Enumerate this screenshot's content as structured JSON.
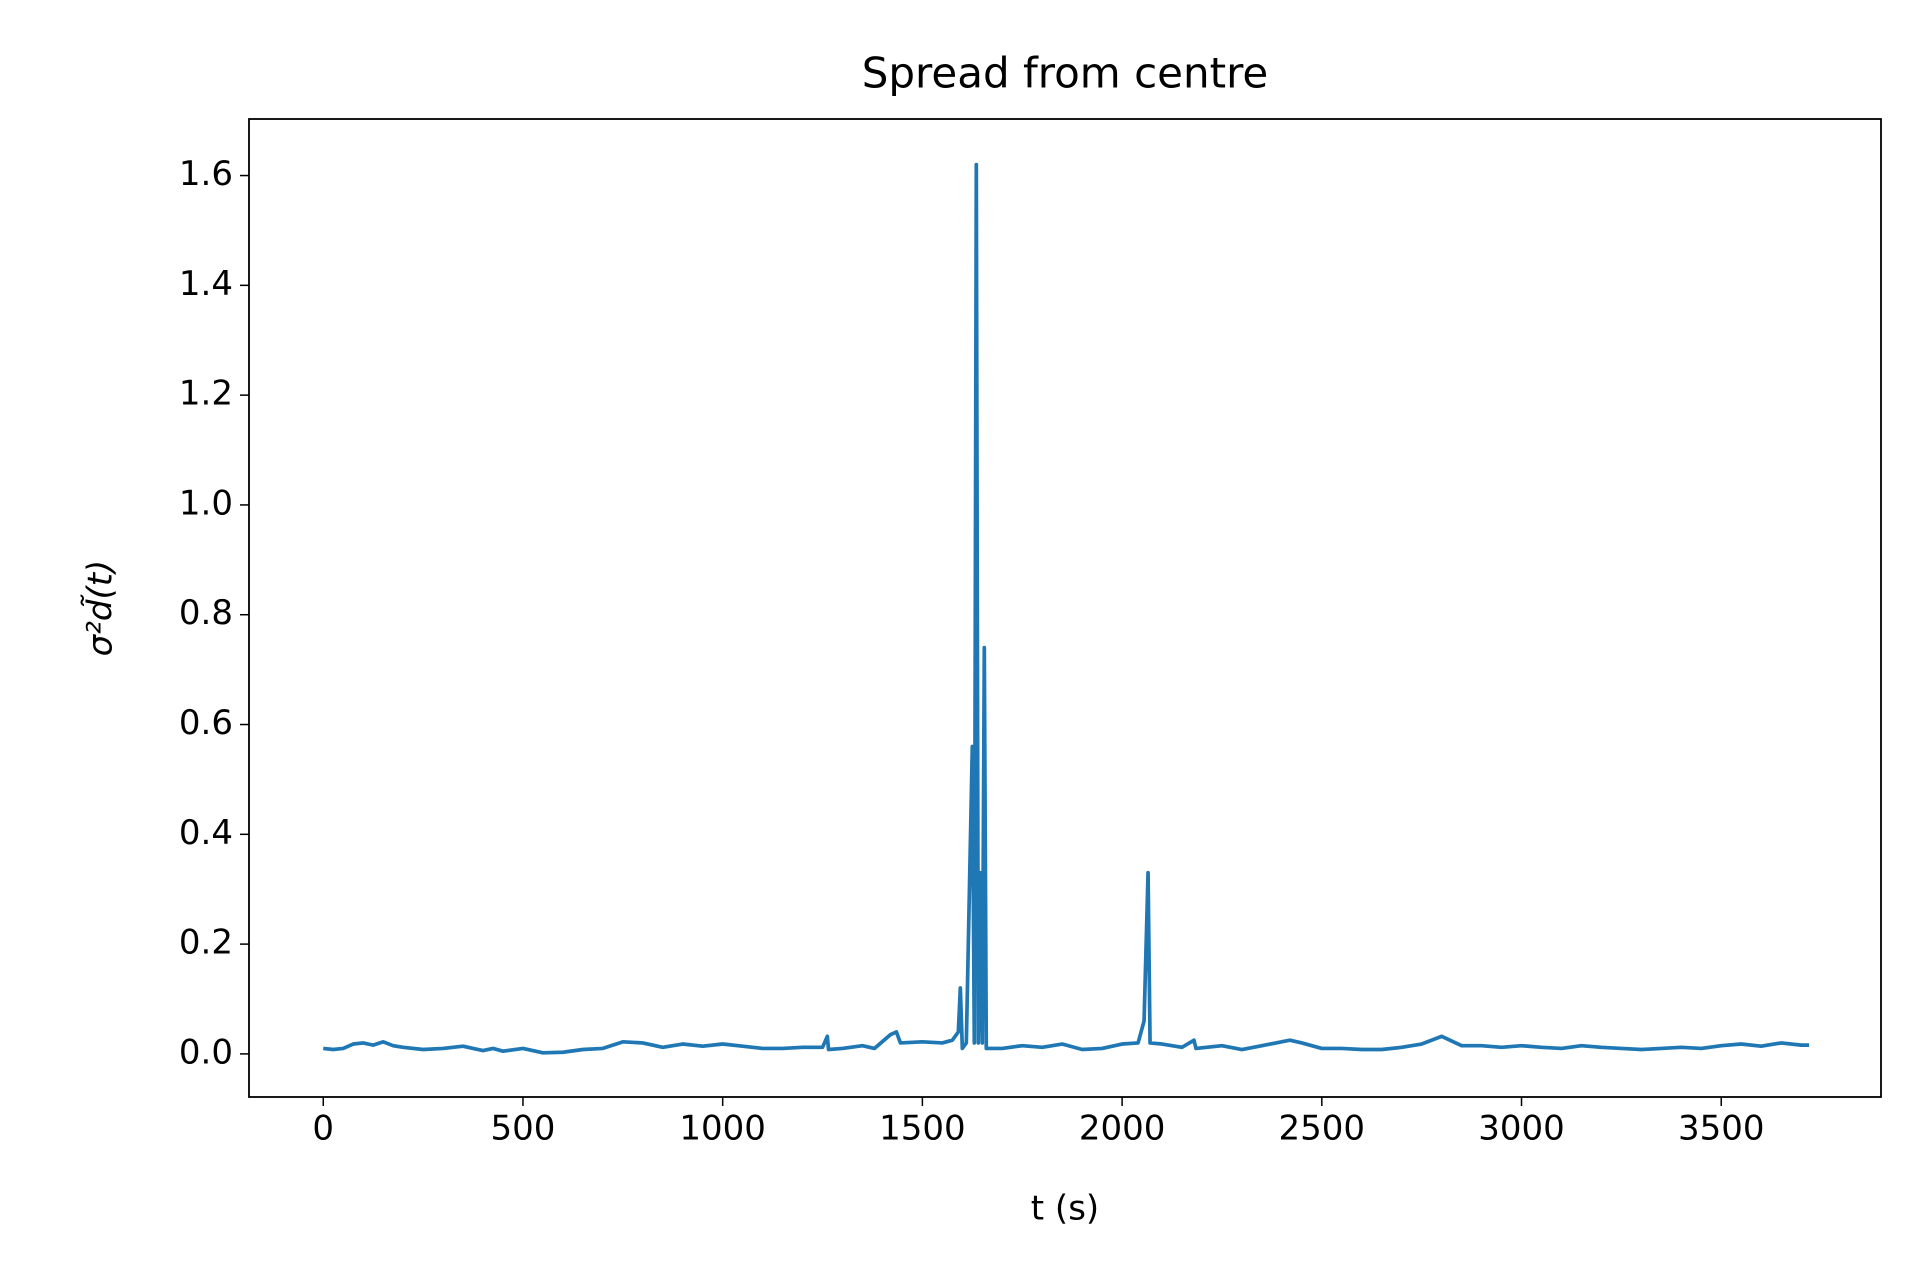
{
  "chart_data": {
    "type": "line",
    "title": "Spread from centre",
    "xlabel": "t (s)",
    "ylabel": "σ²d̃(t)",
    "xlim": [
      -185.9,
      3900
    ],
    "ylim": [
      -0.0785,
      1.703
    ],
    "xticks": [
      0,
      500,
      1000,
      1500,
      2000,
      2500,
      3000,
      3500
    ],
    "yticks": [
      {
        "value": 0,
        "label": "0.0"
      },
      {
        "value": 0.2,
        "label": "0.2"
      },
      {
        "value": 0.4,
        "label": "0.4"
      },
      {
        "value": 0.6,
        "label": "0.6"
      },
      {
        "value": 0.8,
        "label": "0.8"
      },
      {
        "value": 1.0,
        "label": "1.0"
      },
      {
        "value": 1.2,
        "label": "1.2"
      },
      {
        "value": 1.4,
        "label": "1.4"
      },
      {
        "value": 1.6,
        "label": "1.6"
      }
    ],
    "x": [
      0,
      25,
      50,
      75,
      100,
      125,
      150,
      175,
      200,
      250,
      300,
      350,
      375,
      400,
      425,
      450,
      500,
      550,
      600,
      650,
      700,
      750,
      800,
      850,
      900,
      950,
      1000,
      1050,
      1100,
      1150,
      1200,
      1250,
      1262,
      1265,
      1300,
      1350,
      1380,
      1420,
      1435,
      1445,
      1500,
      1550,
      1575,
      1590,
      1595,
      1600,
      1610,
      1625,
      1630,
      1635,
      1640,
      1645,
      1650,
      1655,
      1660,
      1700,
      1750,
      1800,
      1850,
      1900,
      1950,
      2000,
      2040,
      2055,
      2065,
      2070,
      2100,
      2150,
      2180,
      2185,
      2250,
      2300,
      2350,
      2420,
      2450,
      2500,
      2550,
      2600,
      2650,
      2700,
      2750,
      2800,
      2850,
      2900,
      2950,
      3000,
      3050,
      3100,
      3150,
      3200,
      3250,
      3300,
      3350,
      3400,
      3450,
      3500,
      3550,
      3600,
      3650,
      3700,
      3720
    ],
    "series": [
      {
        "color": "#1f77b4",
        "values": [
          0.01,
          0.008,
          0.01,
          0.018,
          0.02,
          0.016,
          0.022,
          0.015,
          0.012,
          0.008,
          0.01,
          0.014,
          0.01,
          0.006,
          0.01,
          0.005,
          0.01,
          0.002,
          0.003,
          0.008,
          0.01,
          0.022,
          0.02,
          0.012,
          0.018,
          0.014,
          0.018,
          0.014,
          0.01,
          0.01,
          0.012,
          0.012,
          0.032,
          0.008,
          0.01,
          0.015,
          0.01,
          0.035,
          0.04,
          0.02,
          0.022,
          0.02,
          0.025,
          0.04,
          0.12,
          0.01,
          0.02,
          0.56,
          0.02,
          1.62,
          0.02,
          0.33,
          0.02,
          0.74,
          0.01,
          0.01,
          0.015,
          0.012,
          0.018,
          0.008,
          0.01,
          0.018,
          0.02,
          0.06,
          0.33,
          0.02,
          0.018,
          0.012,
          0.025,
          0.01,
          0.015,
          0.008,
          0.015,
          0.025,
          0.02,
          0.01,
          0.01,
          0.008,
          0.008,
          0.012,
          0.018,
          0.032,
          0.015,
          0.015,
          0.012,
          0.015,
          0.012,
          0.01,
          0.015,
          0.012,
          0.01,
          0.008,
          0.01,
          0.012,
          0.01,
          0.015,
          0.018,
          0.014,
          0.02,
          0.016,
          0.016
        ]
      }
    ]
  }
}
